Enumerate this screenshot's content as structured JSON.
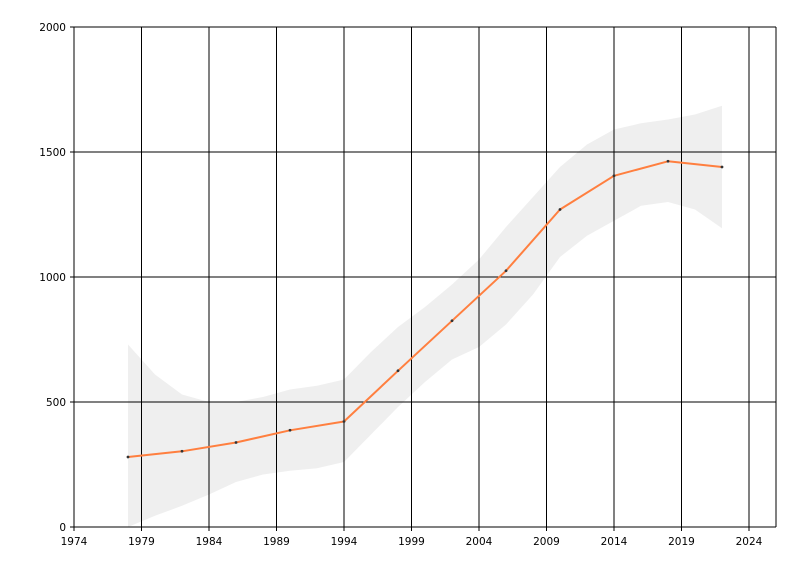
{
  "chart_data": {
    "type": "line",
    "title": "",
    "xlabel": "",
    "ylabel": "",
    "xlim": [
      1974,
      2026
    ],
    "ylim": [
      0,
      2000
    ],
    "x_ticks": [
      1974,
      1979,
      1984,
      1989,
      1994,
      1999,
      2004,
      2009,
      2014,
      2019,
      2024
    ],
    "y_ticks": [
      0,
      500,
      1000,
      1500,
      2000
    ],
    "grid": true,
    "legend": "none",
    "series": [
      {
        "color": "#ff7f3f",
        "x": [
          1978,
          1982,
          1986,
          1990,
          1994,
          1998,
          2002,
          2006,
          2010,
          2014,
          2018,
          2022
        ],
        "values": [
          280,
          303,
          338,
          387,
          422,
          625,
          825,
          1025,
          1270,
          1405,
          1463,
          1440
        ]
      }
    ],
    "band": {
      "color": "#efefef",
      "x": [
        1978,
        1980,
        1982,
        1984,
        1986,
        1988,
        1990,
        1992,
        1994,
        1996,
        1998,
        2000,
        2002,
        2004,
        2006,
        2008,
        2010,
        2012,
        2014,
        2016,
        2018,
        2020,
        2022
      ],
      "upper": [
        730,
        610,
        530,
        500,
        500,
        520,
        550,
        565,
        590,
        700,
        800,
        880,
        970,
        1070,
        1200,
        1320,
        1440,
        1530,
        1590,
        1615,
        1630,
        1650,
        1685
      ],
      "lower": [
        0,
        45,
        85,
        130,
        180,
        210,
        225,
        235,
        260,
        370,
        480,
        580,
        670,
        720,
        810,
        930,
        1080,
        1165,
        1225,
        1285,
        1300,
        1270,
        1195
      ]
    }
  }
}
